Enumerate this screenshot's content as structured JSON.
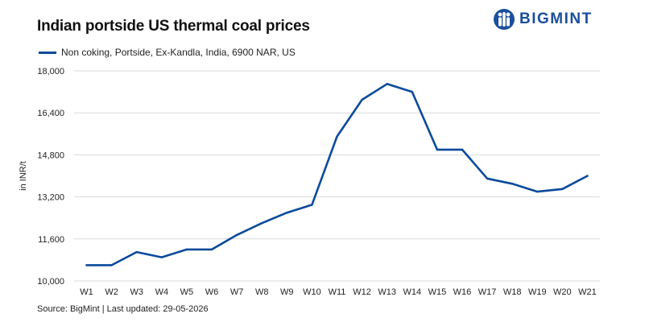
{
  "header": {
    "title": "Indian portside US thermal coal prices",
    "logo_text": "BIGMINT"
  },
  "footer": {
    "source": "Source: BigMint | Last updated: 29-05-2026"
  },
  "colors": {
    "series": "#0a4a9c",
    "brand": "#1b4f9c",
    "grid": "#d9d9d9"
  },
  "chart_data": {
    "type": "line",
    "title": "Indian portside US thermal coal prices",
    "xlabel": "",
    "ylabel": "in INR/t",
    "categories": [
      "W1",
      "W2",
      "W3",
      "W4",
      "W5",
      "W6",
      "W7",
      "W8",
      "W9",
      "W10",
      "W11",
      "W12",
      "W13",
      "W14",
      "W15",
      "W16",
      "W17",
      "W18",
      "W19",
      "W20",
      "W21"
    ],
    "series": [
      {
        "name": "Non coking, Portside, Ex-Kandla, India, 6900 NAR, US",
        "values": [
          10600,
          10600,
          11100,
          10900,
          11200,
          11200,
          11750,
          12200,
          12600,
          12900,
          15500,
          16900,
          17500,
          17200,
          15000,
          15000,
          13900,
          13700,
          13400,
          13500,
          14000
        ]
      }
    ],
    "ylim": [
      10000,
      18000
    ],
    "yticks": [
      10000,
      11600,
      13200,
      14800,
      16400,
      18000
    ],
    "ytick_labels": [
      "10,000",
      "11,600",
      "13,200",
      "14,800",
      "16,400",
      "18,000"
    ],
    "grid": "horizontal",
    "legend": "top-left"
  }
}
